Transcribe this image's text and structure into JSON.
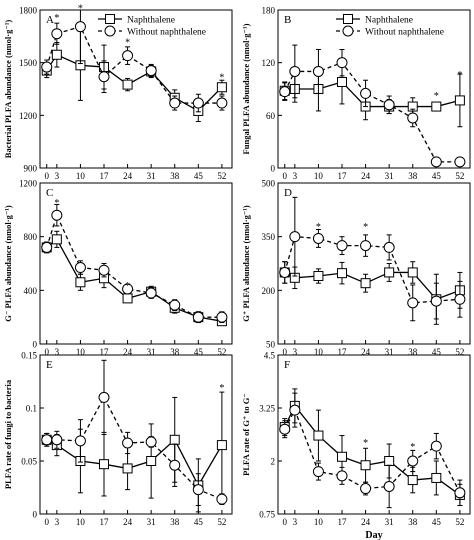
{
  "chart_data": [
    {
      "panel": "A",
      "type": "line",
      "ylabel": "Bacterial PLFA abundance (nmol·g⁻¹)",
      "xlabel": "",
      "x": [
        0,
        3,
        10,
        17,
        24,
        31,
        38,
        45,
        52
      ],
      "x_ticks": [
        "0",
        "3",
        "10",
        "17",
        "24",
        "31",
        "38",
        "45",
        "52"
      ],
      "ylim": [
        900,
        1800
      ],
      "y_ticks": [
        900,
        1200,
        1500,
        1800
      ],
      "legend": [
        "Naphthalene",
        "Without naphthalene"
      ],
      "series": [
        {
          "name": "Naphthalene",
          "marker": "square",
          "line": "solid",
          "values": [
            1455,
            1545,
            1485,
            1475,
            1375,
            1450,
            1300,
            1225,
            1360
          ],
          "err": [
            40,
            70,
            200,
            125,
            35,
            35,
            45,
            60,
            40
          ]
        },
        {
          "name": "Without naphthalene",
          "marker": "circle",
          "line": "dashed",
          "values": [
            1475,
            1665,
            1705,
            1420,
            1540,
            1455,
            1270,
            1270,
            1270
          ],
          "err": [
            40,
            60,
            210,
            90,
            50,
            35,
            40,
            50,
            40
          ]
        }
      ],
      "stars": [
        {
          "x": 3,
          "y": 1760
        },
        {
          "x": 10,
          "y": 1815
        },
        {
          "x": 24,
          "y": 1620
        },
        {
          "x": 52,
          "y": 1420
        }
      ]
    },
    {
      "panel": "B",
      "type": "line",
      "ylabel": "Fungal PLFA abundance (nmol·g⁻¹)",
      "xlabel": "",
      "x": [
        0,
        3,
        10,
        17,
        24,
        31,
        38,
        45,
        52
      ],
      "x_ticks": [
        "0",
        "3",
        "10",
        "17",
        "24",
        "31",
        "38",
        "45",
        "52"
      ],
      "ylim": [
        0,
        180
      ],
      "y_ticks": [
        0,
        60,
        120,
        180
      ],
      "legend": [
        "Naphthalene",
        "Without naphthalene"
      ],
      "series": [
        {
          "name": "Naphthalene",
          "marker": "square",
          "line": "solid",
          "values": [
            88,
            90,
            90,
            98,
            70,
            70,
            70,
            70,
            77
          ],
          "err": [
            10,
            15,
            25,
            25,
            15,
            8,
            10,
            4,
            30
          ]
        },
        {
          "name": "Without naphthalene",
          "marker": "circle",
          "line": "dashed",
          "values": [
            87,
            110,
            110,
            120,
            85,
            72,
            57,
            7,
            7
          ],
          "err": [
            10,
            30,
            25,
            15,
            15,
            10,
            10,
            2,
            2
          ]
        }
      ],
      "stars": [
        {
          "x": 45,
          "y": 83
        },
        {
          "x": 52,
          "y": 107
        }
      ]
    },
    {
      "panel": "C",
      "type": "line",
      "ylabel": "G⁻ PLFA abundance (nmol·g⁻¹)",
      "xlabel": "",
      "x": [
        0,
        3,
        10,
        17,
        24,
        31,
        38,
        45,
        52
      ],
      "x_ticks": [
        "0",
        "3",
        "10",
        "17",
        "24",
        "31",
        "38",
        "45",
        "52"
      ],
      "ylim": [
        0,
        1200
      ],
      "y_ticks": [
        0,
        400,
        800,
        1200
      ],
      "legend": [],
      "series": [
        {
          "name": "Naphthalene",
          "marker": "square",
          "line": "solid",
          "values": [
            720,
            780,
            460,
            490,
            340,
            390,
            270,
            200,
            170
          ],
          "err": [
            40,
            60,
            60,
            70,
            30,
            40,
            40,
            40,
            30
          ]
        },
        {
          "name": "Without naphthalene",
          "marker": "circle",
          "line": "dashed",
          "values": [
            720,
            960,
            570,
            550,
            410,
            380,
            290,
            200,
            200
          ],
          "err": [
            40,
            80,
            50,
            50,
            30,
            40,
            40,
            40,
            40
          ]
        }
      ],
      "stars": [
        {
          "x": 3,
          "y": 1060
        },
        {
          "x": 24,
          "y": 440
        }
      ]
    },
    {
      "panel": "D",
      "type": "line",
      "ylabel": "G⁺ PLFA abundance (nmol·g⁻¹)",
      "xlabel": "",
      "x": [
        0,
        3,
        10,
        17,
        24,
        31,
        38,
        45,
        52
      ],
      "x_ticks": [
        "0",
        "3",
        "10",
        "17",
        "24",
        "31",
        "38",
        "45",
        "52"
      ],
      "ylim": [
        50,
        500
      ],
      "y_ticks": [
        50,
        200,
        350,
        500
      ],
      "legend": [],
      "series": [
        {
          "name": "Naphthalene",
          "marker": "square",
          "line": "solid",
          "values": [
            250,
            235,
            240,
            248,
            220,
            250,
            250,
            175,
            200
          ],
          "err": [
            30,
            30,
            20,
            30,
            25,
            25,
            30,
            70,
            50
          ]
        },
        {
          "name": "Without naphthalene",
          "marker": "circle",
          "line": "dashed",
          "values": [
            250,
            350,
            345,
            325,
            325,
            320,
            165,
            170,
            175
          ],
          "err": [
            30,
            110,
            25,
            25,
            30,
            35,
            50,
            50,
            50
          ]
        }
      ],
      "stars": [
        {
          "x": 10,
          "y": 380
        },
        {
          "x": 24,
          "y": 380
        }
      ]
    },
    {
      "panel": "E",
      "type": "line",
      "ylabel": "PLFA rate of fungi to bacteria",
      "xlabel": "",
      "x": [
        0,
        3,
        10,
        17,
        24,
        31,
        38,
        45,
        52
      ],
      "x_ticks": [
        "0",
        "3",
        "10",
        "17",
        "24",
        "31",
        "38",
        "45",
        "52"
      ],
      "ylim": [
        0,
        0.15
      ],
      "y_ticks": [
        0.0,
        0.05,
        0.1,
        0.15
      ],
      "legend": [],
      "series": [
        {
          "name": "Naphthalene",
          "marker": "square",
          "line": "solid",
          "values": [
            0.07,
            0.065,
            0.05,
            0.047,
            0.043,
            0.05,
            0.07,
            0.027,
            0.065
          ],
          "err": [
            0.006,
            0.01,
            0.03,
            0.03,
            0.02,
            0.035,
            0.04,
            0.025,
            0.05
          ]
        },
        {
          "name": "Without naphthalene",
          "marker": "circle",
          "line": "dashed",
          "values": [
            0.07,
            0.07,
            0.069,
            0.11,
            0.067,
            0.068,
            0.046,
            0.023,
            0.014
          ],
          "err": [
            0.006,
            0.008,
            0.02,
            0.035,
            0.01,
            0.005,
            0.02,
            0.015,
            0.005
          ]
        }
      ],
      "stars": [
        {
          "x": 52,
          "y": 0.12
        }
      ]
    },
    {
      "panel": "F",
      "type": "line",
      "ylabel": "PLFA rate of G⁺ to G⁻",
      "xlabel": "Day",
      "x": [
        0,
        3,
        10,
        17,
        24,
        31,
        38,
        45,
        52
      ],
      "x_ticks": [
        "0",
        "3",
        "10",
        "17",
        "24",
        "31",
        "38",
        "45",
        "52"
      ],
      "ylim": [
        0.75,
        4.5
      ],
      "y_ticks": [
        0.75,
        2.0,
        3.25,
        4.5
      ],
      "legend": [],
      "series": [
        {
          "name": "Naphthalene",
          "marker": "square",
          "line": "solid",
          "values": [
            2.8,
            3.3,
            2.6,
            2.1,
            1.9,
            2.0,
            1.55,
            1.6,
            1.2
          ],
          "err": [
            0.2,
            0.4,
            0.6,
            0.5,
            0.4,
            0.4,
            0.3,
            0.4,
            0.25
          ]
        },
        {
          "name": "Without naphthalene",
          "marker": "circle",
          "line": "dashed",
          "values": [
            2.75,
            3.2,
            1.75,
            1.65,
            1.35,
            1.4,
            2.0,
            2.35,
            1.25
          ],
          "err": [
            0.2,
            0.4,
            0.2,
            0.2,
            0.15,
            0.5,
            0.25,
            0.3,
            0.3
          ]
        }
      ],
      "stars": [
        {
          "x": 24,
          "y": 2.45
        },
        {
          "x": 38,
          "y": 2.35
        }
      ]
    }
  ],
  "xlabel_bottom": "Day",
  "star_glyph": "*"
}
